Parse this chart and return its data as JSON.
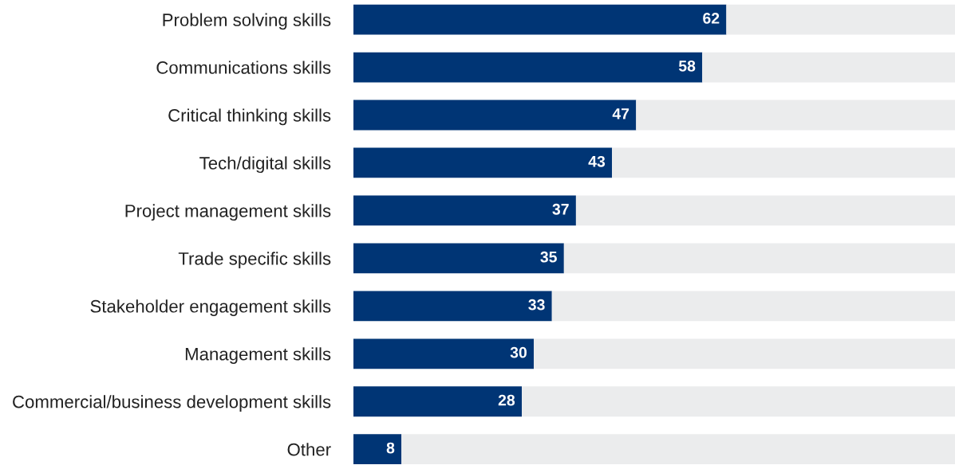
{
  "chart_data": {
    "type": "bar",
    "orientation": "horizontal",
    "stacked": true,
    "categories": [
      "Problem solving skills",
      "Communications skills",
      "Critical thinking skills",
      "Tech/digital skills",
      "Project management skills",
      "Trade specific skills",
      "Stakeholder engagement skills",
      "Management skills",
      "Commercial/business development skills",
      "Other"
    ],
    "series": [
      {
        "color": "#003575",
        "values": [
          62,
          58,
          47,
          43,
          37,
          35,
          33,
          30,
          28,
          8
        ],
        "value_labels": [
          "62",
          "58",
          "47",
          "43",
          "37",
          "35",
          "33",
          "30",
          "28",
          "8"
        ]
      },
      {
        "color": "#ebeced",
        "values": [
          38,
          42,
          53,
          57,
          63,
          65,
          67,
          70,
          72,
          92
        ]
      }
    ],
    "xlim": [
      0,
      100
    ],
    "tick_labels": "y",
    "grid": false
  }
}
